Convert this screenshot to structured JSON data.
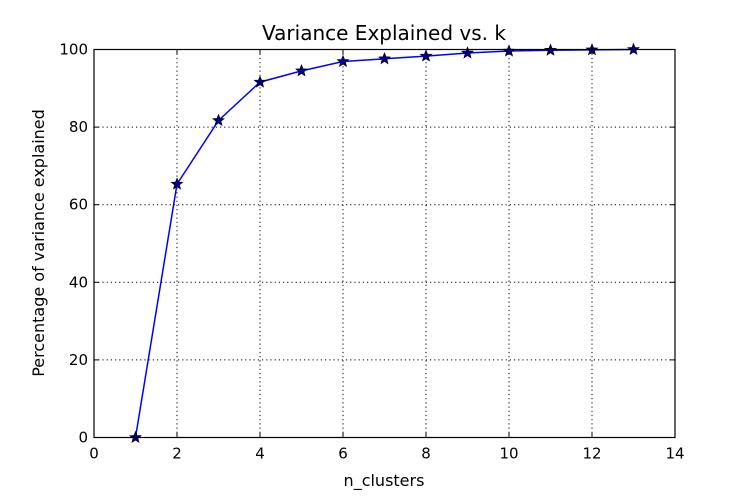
{
  "chart_data": {
    "type": "line",
    "title": "Variance Explained vs. k",
    "xlabel": "n_clusters",
    "ylabel": "Percentage of variance explained",
    "xlim": [
      0,
      14
    ],
    "ylim": [
      0,
      100
    ],
    "xticks": [
      "0",
      "2",
      "4",
      "6",
      "8",
      "10",
      "12",
      "14"
    ],
    "yticks": [
      "0",
      "20",
      "40",
      "60",
      "80",
      "100"
    ],
    "grid": true,
    "marker": "star",
    "line_color": "#0000ff",
    "marker_color": "#00008b",
    "series": [
      {
        "x": [
          1,
          2,
          3,
          4,
          5,
          6,
          7,
          8,
          9,
          10,
          11,
          12,
          13
        ],
        "y": [
          0,
          65.3,
          81.7,
          91.6,
          94.5,
          96.9,
          97.6,
          98.3,
          99.1,
          99.6,
          99.8,
          99.9,
          100
        ]
      }
    ]
  }
}
